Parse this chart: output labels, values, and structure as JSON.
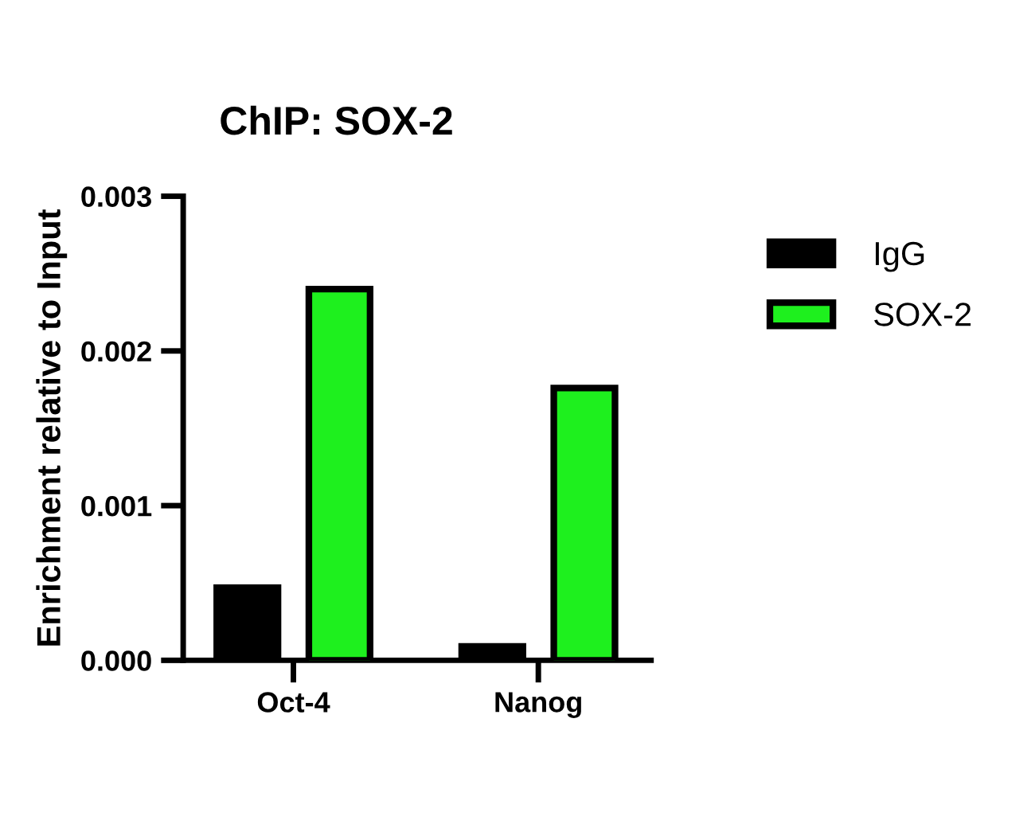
{
  "chart_data": {
    "type": "bar",
    "title": "ChIP: SOX-2",
    "ylabel": "Enrichment relative to Input",
    "categories": [
      "Oct-4",
      "Nanog"
    ],
    "series": [
      {
        "name": "IgG",
        "color": "#000000",
        "values": [
          0.00047,
          9e-05
        ]
      },
      {
        "name": "SOX-2",
        "color": "#1ef01e",
        "values": [
          0.0024,
          0.00176
        ]
      }
    ],
    "ylim": [
      0,
      0.003
    ],
    "yticks": [
      {
        "value": 0,
        "label": "0.000"
      },
      {
        "value": 0.001,
        "label": "0.001"
      },
      {
        "value": 0.002,
        "label": "0.002"
      },
      {
        "value": 0.003,
        "label": "0.003"
      }
    ],
    "grid": false,
    "legend": "top right"
  }
}
